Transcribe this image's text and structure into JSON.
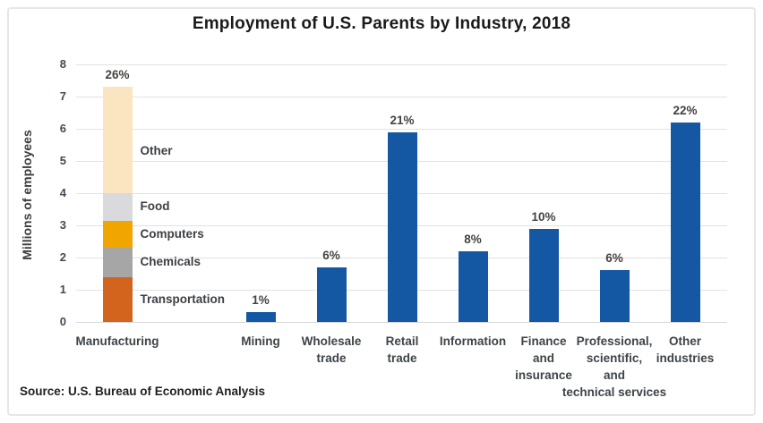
{
  "title": "Employment of U.S. Parents by Industry, 2018",
  "source": "Source: U.S. Bureau of Economic Analysis",
  "chart_data": {
    "type": "bar",
    "title": "Employment of U.S. Parents by Industry, 2018",
    "xlabel": "",
    "ylabel": "Millions of employees",
    "ylim": [
      0,
      8
    ],
    "yticks": [
      0,
      1,
      2,
      3,
      4,
      5,
      6,
      7,
      8
    ],
    "grid": true,
    "legend_position": "none",
    "bar_color": "#1458A4",
    "categories": [
      "Manufacturing",
      "Mining",
      "Wholesale trade",
      "Retail trade",
      "Information",
      "Finance and insurance",
      "Professional, scientific, and technical services",
      "Other industries"
    ],
    "bars": [
      {
        "category": "Manufacturing",
        "label_lines": [
          "Manufacturing"
        ],
        "percent_label": "26%",
        "total": 7.3,
        "stacked": true,
        "segments": [
          {
            "label": "Transportation",
            "value": 1.4,
            "color": "#D2641E"
          },
          {
            "label": "Chemicals",
            "value": 0.9,
            "color": "#A6A6A6"
          },
          {
            "label": "Computers",
            "value": 0.85,
            "color": "#F0A500"
          },
          {
            "label": "Food",
            "value": 0.85,
            "color": "#D9DADE"
          },
          {
            "label": "Other",
            "value": 3.3,
            "color": "#FBE5C0"
          }
        ]
      },
      {
        "category": "Mining",
        "label_lines": [
          "Mining"
        ],
        "percent_label": "1%",
        "value": 0.3
      },
      {
        "category": "Wholesale trade",
        "label_lines": [
          "Wholesale",
          "trade"
        ],
        "percent_label": "6%",
        "value": 1.7
      },
      {
        "category": "Retail trade",
        "label_lines": [
          "Retail",
          "trade"
        ],
        "percent_label": "21%",
        "value": 5.9
      },
      {
        "category": "Information",
        "label_lines": [
          "Information"
        ],
        "percent_label": "8%",
        "value": 2.2
      },
      {
        "category": "Finance and insurance",
        "label_lines": [
          "Finance",
          "and",
          "insurance"
        ],
        "percent_label": "10%",
        "value": 2.9
      },
      {
        "category": "Professional, scientific, and technical services",
        "label_lines": [
          "Professional,",
          "scientific,",
          "and",
          "technical services"
        ],
        "percent_label": "6%",
        "value": 1.6
      },
      {
        "category": "Other industries",
        "label_lines": [
          "Other",
          "industries"
        ],
        "percent_label": "22%",
        "value": 6.2
      }
    ]
  }
}
